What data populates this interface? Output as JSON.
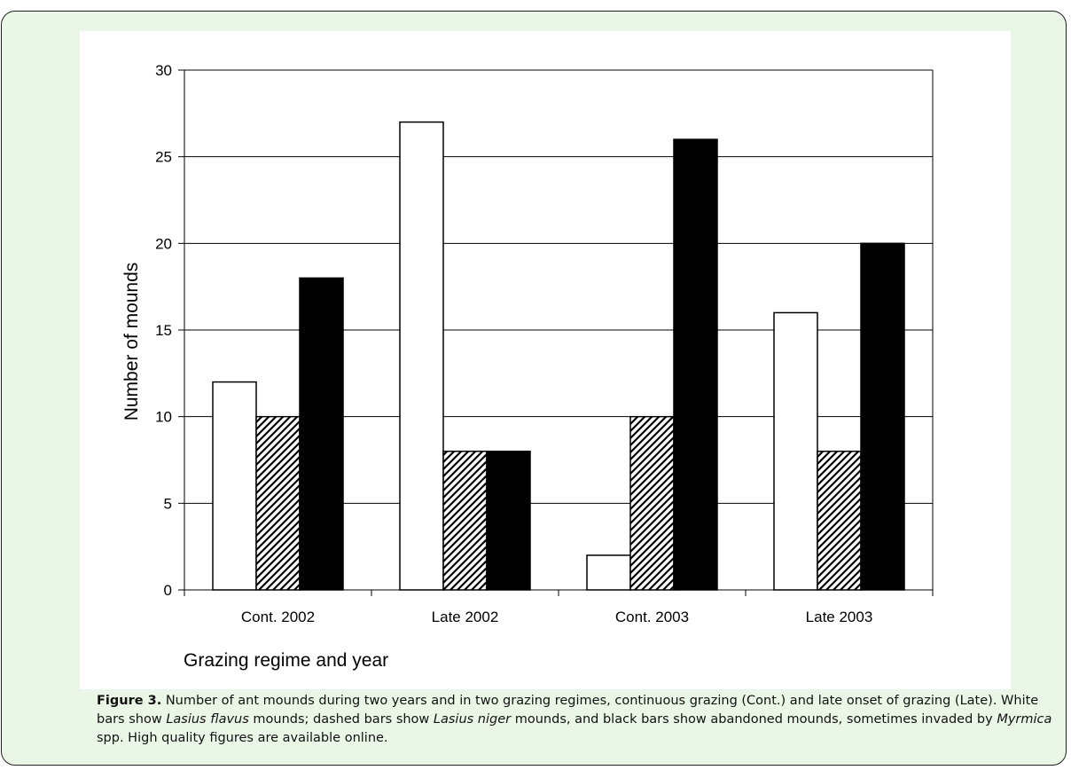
{
  "chart_data": {
    "type": "bar",
    "categories": [
      "Cont. 2002",
      "Late 2002",
      "Cont.  2003",
      "Late 2003"
    ],
    "series": [
      {
        "values": [
          12,
          27,
          2,
          16
        ],
        "fill": "#ffffff",
        "pattern": "none"
      },
      {
        "values": [
          10,
          8,
          10,
          8
        ],
        "fill": "#ffffff",
        "pattern": "diagonal-hatch"
      },
      {
        "values": [
          18,
          8,
          26,
          20
        ],
        "fill": "#000000",
        "pattern": "none"
      }
    ],
    "yticks": [
      "0",
      "5",
      "10",
      "15",
      "20",
      "25",
      "30"
    ],
    "ylim": [
      0,
      30
    ],
    "xlabel": "Grazing regime and year",
    "ylabel": "Number of mounds",
    "grid": "horizontal",
    "legend": "none"
  },
  "caption": {
    "label": "Figure 3.",
    "parts": [
      {
        "text": " Number of ant mounds during two years and in two grazing regimes, continuous grazing (Cont.) and late onset of grazing (Late). White bars show ",
        "italic": false
      },
      {
        "text": "Lasius flavus",
        "italic": true
      },
      {
        "text": " mounds; dashed bars show ",
        "italic": false
      },
      {
        "text": "Lasius niger",
        "italic": true
      },
      {
        "text": " mounds, and black bars show abandoned mounds, sometimes invaded by ",
        "italic": false
      },
      {
        "text": "Myrmica",
        "italic": true
      },
      {
        "text": " spp. High quality figures are available online.",
        "italic": false
      }
    ]
  },
  "colors": {
    "frame_background": "#ebf7e6",
    "plot_background": "#ffffff",
    "frame_border": "#222222"
  }
}
